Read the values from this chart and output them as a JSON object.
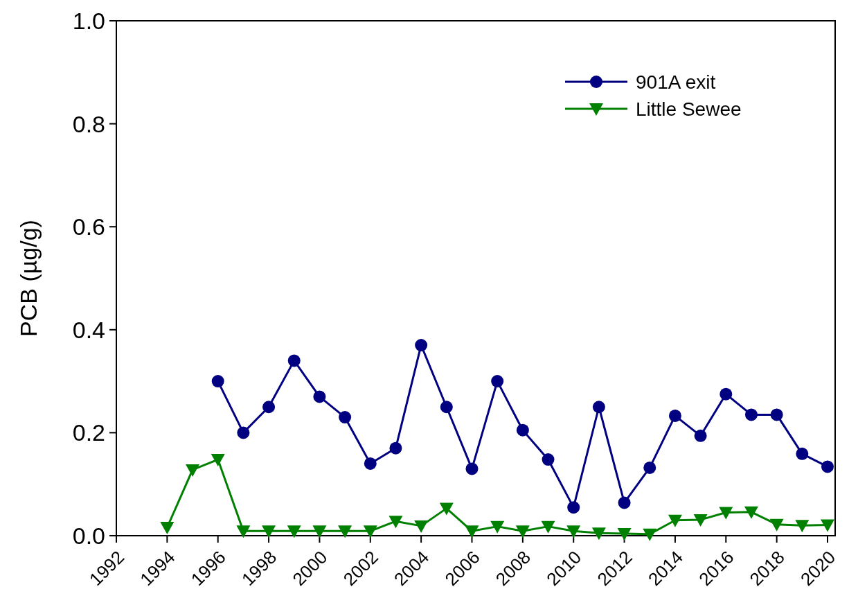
{
  "chart_data": {
    "type": "line",
    "ylabel": "PCB (µg/g)",
    "xlim": [
      1992,
      2020.3
    ],
    "xticks": [
      1992,
      1994,
      1996,
      1998,
      2000,
      2002,
      2004,
      2006,
      2008,
      2010,
      2012,
      2014,
      2016,
      2018,
      2020
    ],
    "ylim": [
      0,
      1
    ],
    "yticks": [
      {
        "value": 0,
        "label": "0.0"
      },
      {
        "value": 0.2,
        "label": "0.2"
      },
      {
        "value": 0.4,
        "label": "0.4"
      },
      {
        "value": 0.6,
        "label": "0.6"
      },
      {
        "value": 0.8,
        "label": "0.8"
      },
      {
        "value": 1,
        "label": "1.0"
      }
    ],
    "grid": false,
    "legend": "top right",
    "line_style": "solid",
    "series": [
      {
        "name": "901A exit",
        "color": "#000080",
        "marker": "circle",
        "x": [
          1996,
          1997,
          1998,
          1999,
          2000,
          2001,
          2002,
          2003,
          2004,
          2005,
          2006,
          2007,
          2008,
          2009,
          2010,
          2011,
          2012,
          2013,
          2014,
          2015,
          2016,
          2017,
          2018,
          2019,
          2020
        ],
        "values": [
          0.3,
          0.2,
          0.25,
          0.34,
          0.27,
          0.23,
          0.14,
          0.17,
          0.37,
          0.25,
          0.13,
          0.3,
          0.205,
          0.148,
          0.055,
          0.25,
          0.064,
          0.132,
          0.233,
          0.194,
          0.275,
          0.235,
          0.235,
          0.159,
          0.134
        ]
      },
      {
        "name": "Little Sewee",
        "color": "#008000",
        "marker": "triangle",
        "x": [
          1994,
          1995,
          1996,
          1997,
          1998,
          1999,
          2000,
          2001,
          2002,
          2003,
          2004,
          2005,
          2006,
          2007,
          2008,
          2009,
          2010,
          2011,
          2012,
          2013,
          2014,
          2015,
          2016,
          2017,
          2018,
          2019,
          2020
        ],
        "values": [
          0.016,
          0.128,
          0.148,
          0.009,
          0.009,
          0.009,
          0.009,
          0.009,
          0.009,
          0.028,
          0.019,
          0.053,
          0.009,
          0.018,
          0.009,
          0.018,
          0.009,
          0.005,
          0.004,
          0.003,
          0.03,
          0.031,
          0.045,
          0.046,
          0.022,
          0.02,
          0.021
        ]
      }
    ]
  }
}
